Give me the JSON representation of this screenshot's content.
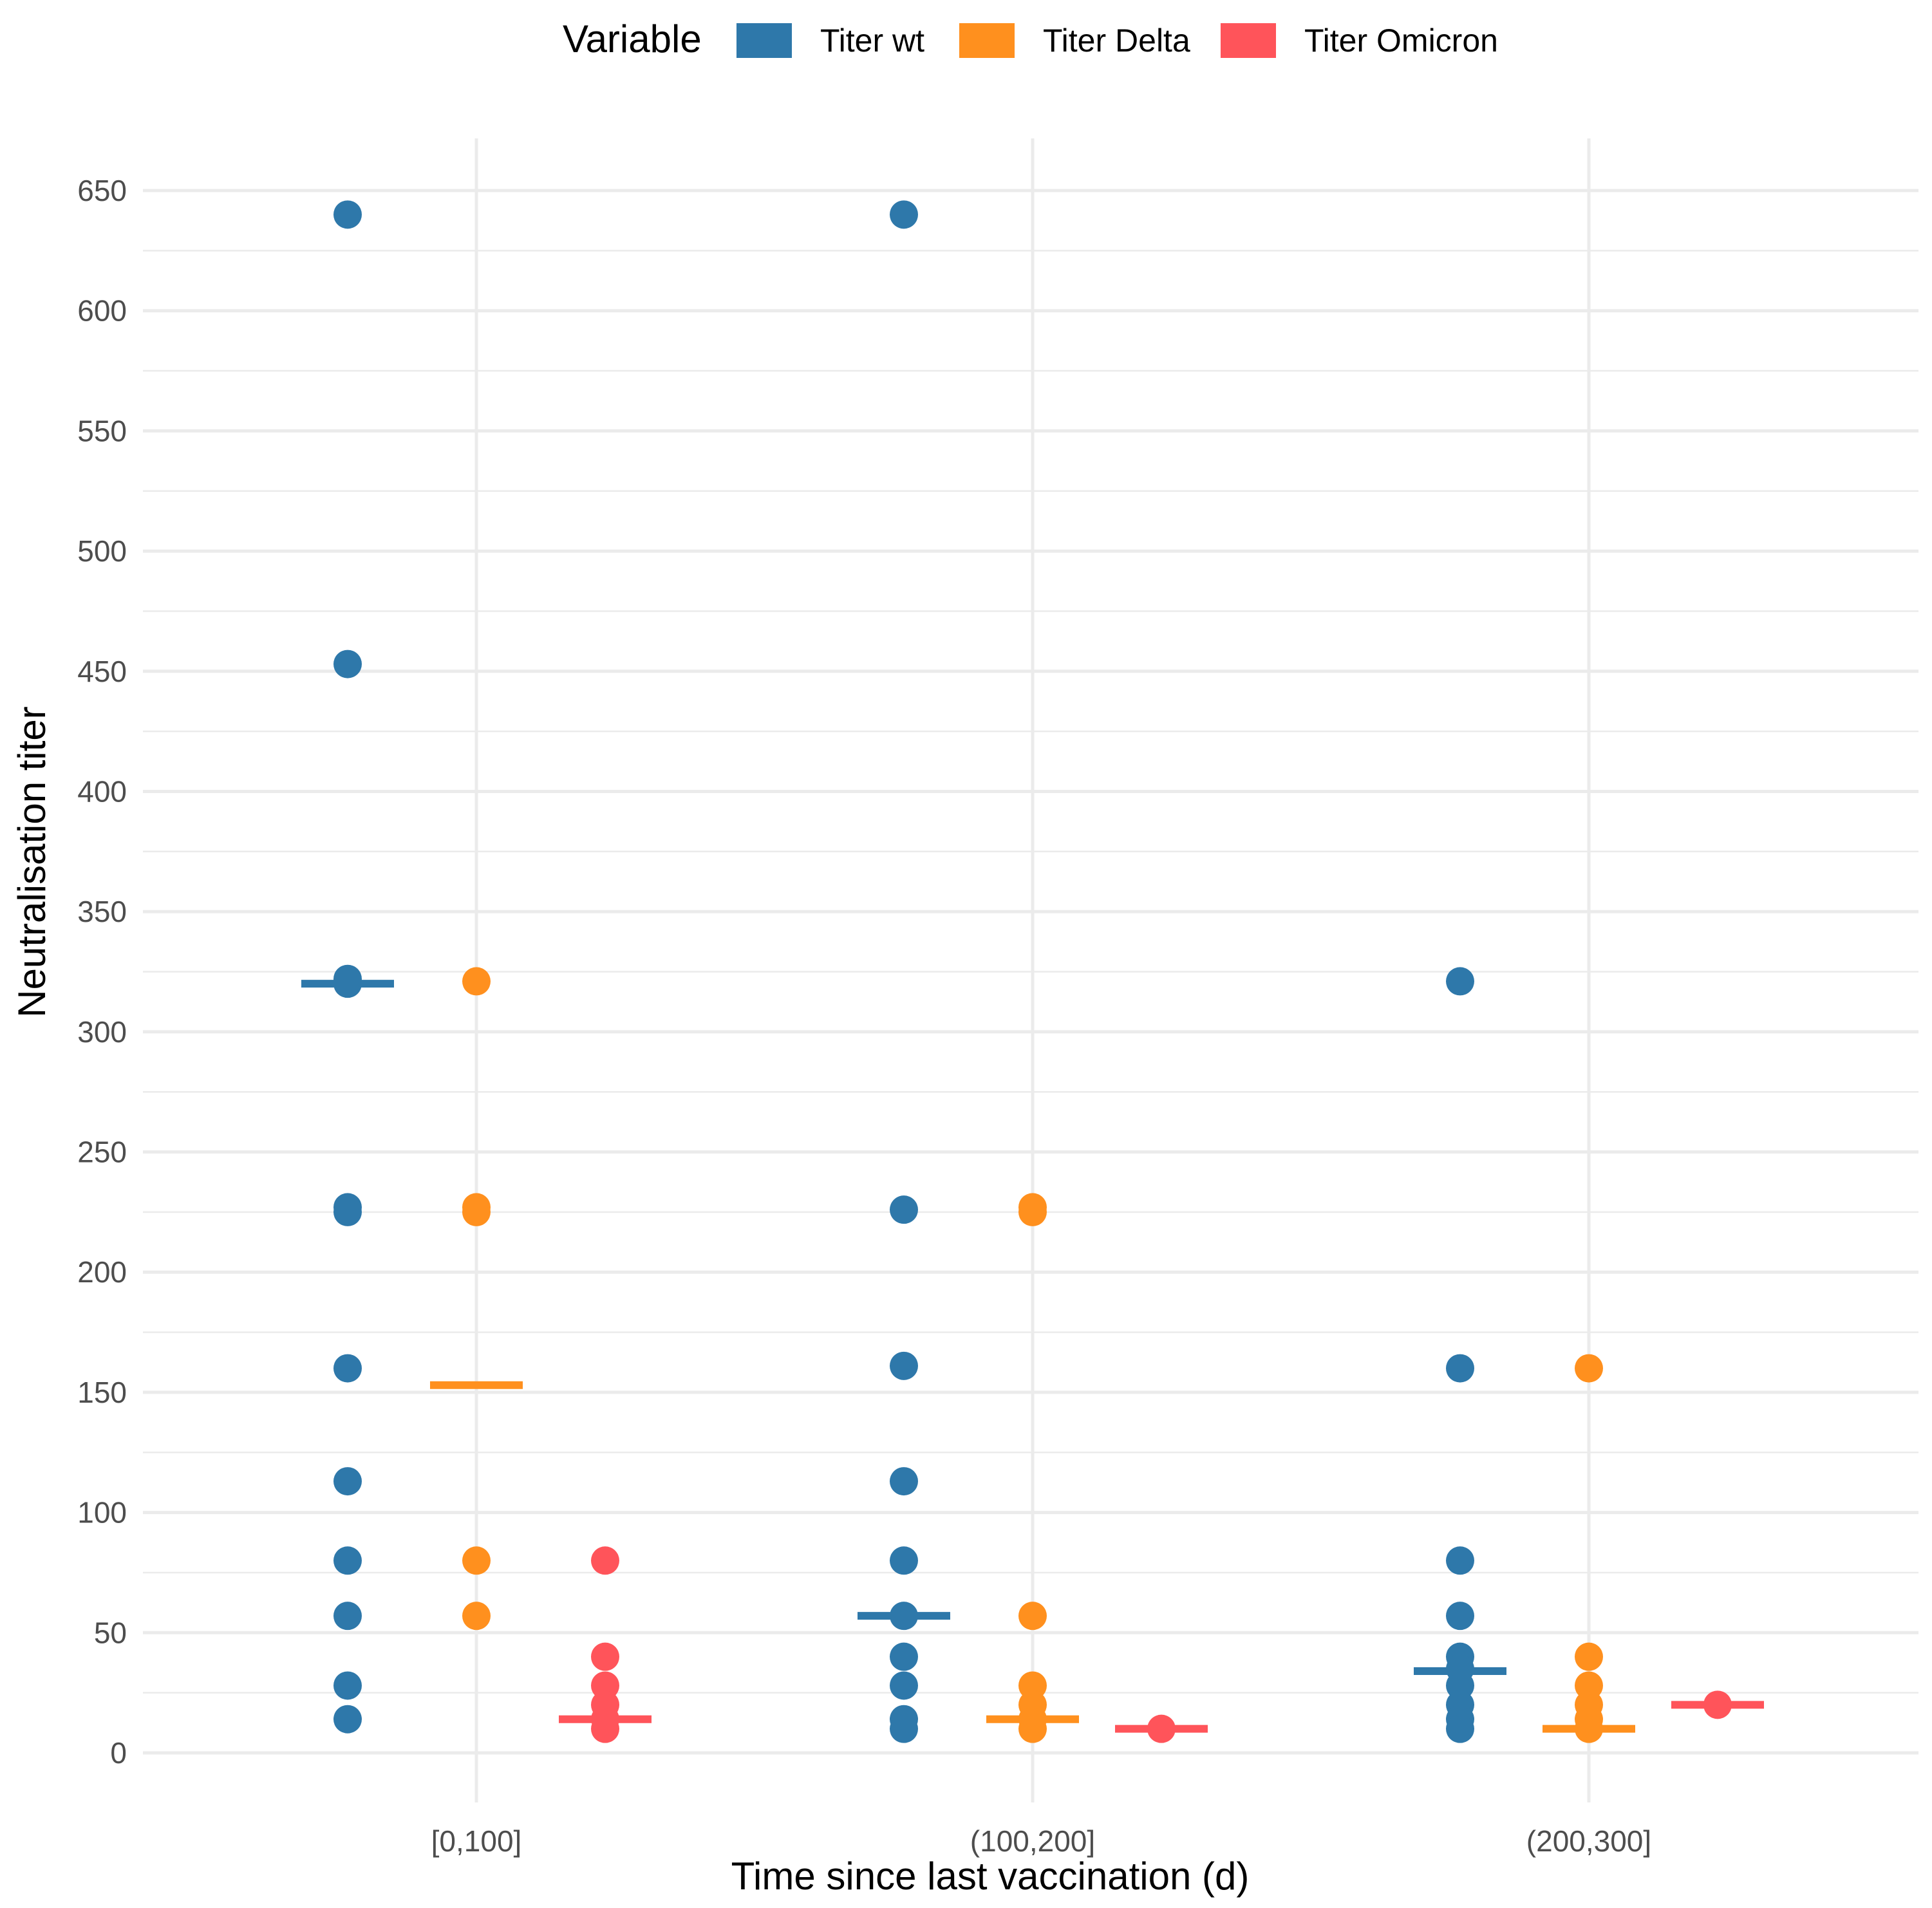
{
  "chart_data": {
    "type": "scatter",
    "title": "",
    "xlabel": "Time since last vaccination (d)",
    "ylabel": "Neutralisation titer",
    "ylim": [
      -25,
      665
    ],
    "yticks": [
      0,
      50,
      100,
      150,
      200,
      250,
      300,
      350,
      400,
      450,
      500,
      550,
      600,
      650
    ],
    "grid": true,
    "legend_position": "top",
    "legend_title": "Variable",
    "categories": [
      "[0,100]",
      "(100,200]",
      "(200,300]"
    ],
    "series": [
      {
        "name": "Titer wt",
        "color": "#2e78aa",
        "medians": [
          320,
          57,
          34
        ],
        "points": [
          [
            640,
            453,
            320,
            322,
            227,
            225,
            160,
            113,
            80,
            57,
            28,
            14
          ],
          [
            640,
            226,
            161,
            113,
            80,
            57,
            40,
            28,
            14,
            10
          ],
          [
            321,
            160,
            80,
            57,
            40,
            35,
            28,
            20,
            14,
            10
          ]
        ]
      },
      {
        "name": "Titer Delta",
        "color": "#ff901e",
        "medians": [
          153,
          14,
          10
        ],
        "points": [
          [
            321,
            227,
            225,
            80,
            57
          ],
          [
            227,
            225,
            57,
            28,
            20,
            14,
            10
          ],
          [
            160,
            40,
            28,
            20,
            14,
            10
          ]
        ]
      },
      {
        "name": "Titer Omicron",
        "color": "#ff545a",
        "medians": [
          14,
          10,
          20
        ],
        "points": [
          [
            80,
            40,
            28,
            20,
            14,
            10
          ],
          [
            10
          ],
          [
            20
          ]
        ]
      }
    ]
  }
}
